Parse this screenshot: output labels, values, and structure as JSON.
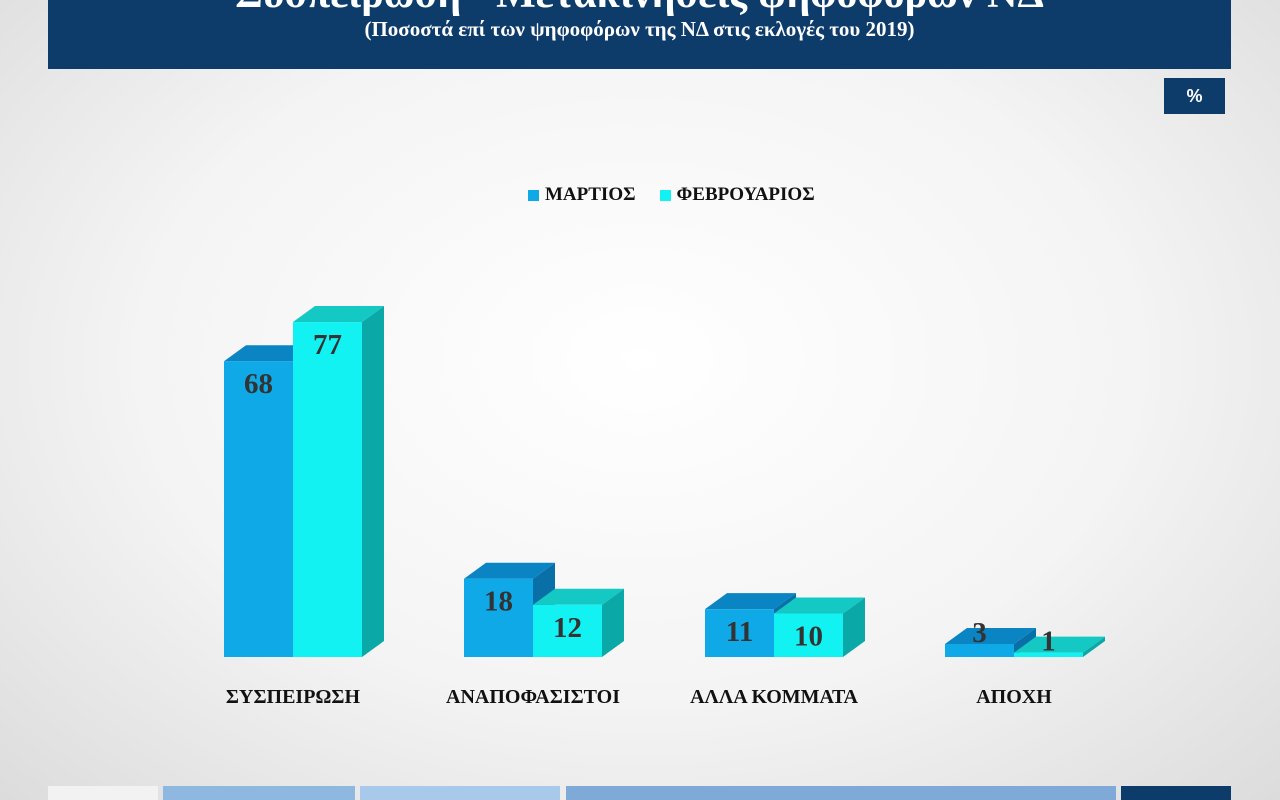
{
  "header": {
    "title": "Συσπείρωση - Μετακινήσεις ψηφοφόρων ΝΔ",
    "subtitle": "(Ποσοστά επί των ψηφοφόρων της ΝΔ στις εκλογές του 2019)"
  },
  "unit_badge": "%",
  "colors": {
    "header_bg": "#0e3c6a",
    "series_march": "#0fa9e8",
    "series_february": "#12f2f2"
  },
  "chart_data": {
    "type": "bar",
    "categories": [
      "ΣΥΣΠΕΙΡΩΣΗ",
      "ΑΝΑΠΟΦΑΣΙΣΤΟΙ",
      "ΑΛΛΑ ΚΟΜΜΑΤΑ",
      "ΑΠΟΧΗ"
    ],
    "series": [
      {
        "name": "ΜΑΡΤΙΟΣ",
        "values": [
          68,
          18,
          11,
          3
        ]
      },
      {
        "name": "ΦΕΒΡΟΥΑΡΙΟΣ",
        "values": [
          77,
          12,
          10,
          1
        ]
      }
    ],
    "legend": "top-center",
    "grid": false,
    "style": "3d-column"
  }
}
